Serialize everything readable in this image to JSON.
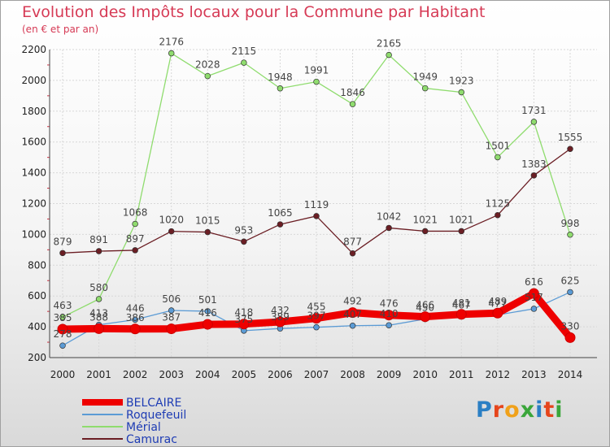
{
  "title": "Evolution des Impôts locaux pour la Commune par Habitant",
  "subtitle": "(en € et par an)",
  "logo": {
    "text": "Proxiti",
    "letter_colors": [
      "#2b7fc4",
      "#e6451c",
      "#f0a11a",
      "#3aa63a",
      "#2b7fc4",
      "#e6451c",
      "#3aa63a"
    ]
  },
  "chart_data": {
    "type": "line",
    "x": [
      2000,
      2001,
      2002,
      2003,
      2004,
      2005,
      2006,
      2007,
      2008,
      2009,
      2010,
      2011,
      2012,
      2013,
      2014
    ],
    "ylim": [
      200,
      2200
    ],
    "yticks": [
      200,
      400,
      600,
      800,
      1000,
      1200,
      1400,
      1600,
      1800,
      2000,
      2200
    ],
    "grid": true,
    "legend_position": "bottom-left",
    "series": [
      {
        "name": "Mérial",
        "color": "#8fdc6e",
        "width": 1.3,
        "values": [
          463,
          580,
          1068,
          2176,
          2028,
          2115,
          1948,
          1991,
          1846,
          2165,
          1949,
          1923,
          1501,
          1731,
          998
        ]
      },
      {
        "name": "Camurac",
        "color": "#6b1e24",
        "width": 1.3,
        "values": [
          879,
          891,
          897,
          1020,
          1015,
          953,
          1065,
          1119,
          877,
          1042,
          1021,
          1021,
          1125,
          1383,
          1555
        ]
      },
      {
        "name": "Roquefeuil",
        "color": "#5b9bd5",
        "width": 1.3,
        "values": [
          278,
          413,
          446,
          506,
          501,
          375,
          389,
          397,
          407,
          410,
          450,
          467,
          477,
          517,
          625
        ]
      },
      {
        "name": "BELCAIRE",
        "color": "#ee0000",
        "width": 9,
        "values": [
          385,
          388,
          386,
          387,
          416,
          418,
          432,
          455,
          492,
          476,
          466,
          481,
          489,
          616,
          330
        ]
      }
    ]
  }
}
